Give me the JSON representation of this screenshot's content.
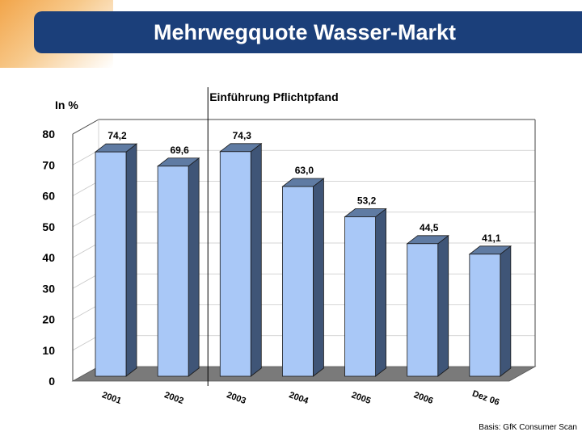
{
  "slide": {
    "title": "Mehrwegquote Wasser-Markt",
    "source_note": "Basis: GfK Consumer Scan"
  },
  "chart_data": {
    "type": "bar",
    "categories": [
      "2001",
      "2002",
      "2003",
      "2004",
      "2005",
      "2006",
      "Dez 06"
    ],
    "values": [
      74.2,
      69.6,
      74.3,
      63.0,
      53.2,
      44.5,
      41.1
    ],
    "value_labels": [
      "74,2",
      "69,6",
      "74,3",
      "63,0",
      "53,2",
      "44,5",
      "41,1"
    ],
    "title": "",
    "xlabel": "",
    "ylabel": "In %",
    "ylim": [
      0,
      80
    ],
    "yticks": [
      0,
      10,
      20,
      30,
      40,
      50,
      60,
      70,
      80
    ],
    "grid": true,
    "annotation": {
      "text": "Einführung Pflichtpfand",
      "between_categories": [
        "2002",
        "2003"
      ]
    },
    "colors": {
      "bar_front": "#a9c8f7",
      "bar_side": "#3f5577",
      "bar_top": "#5f7ba3",
      "floor": "#7a7a7a"
    }
  }
}
